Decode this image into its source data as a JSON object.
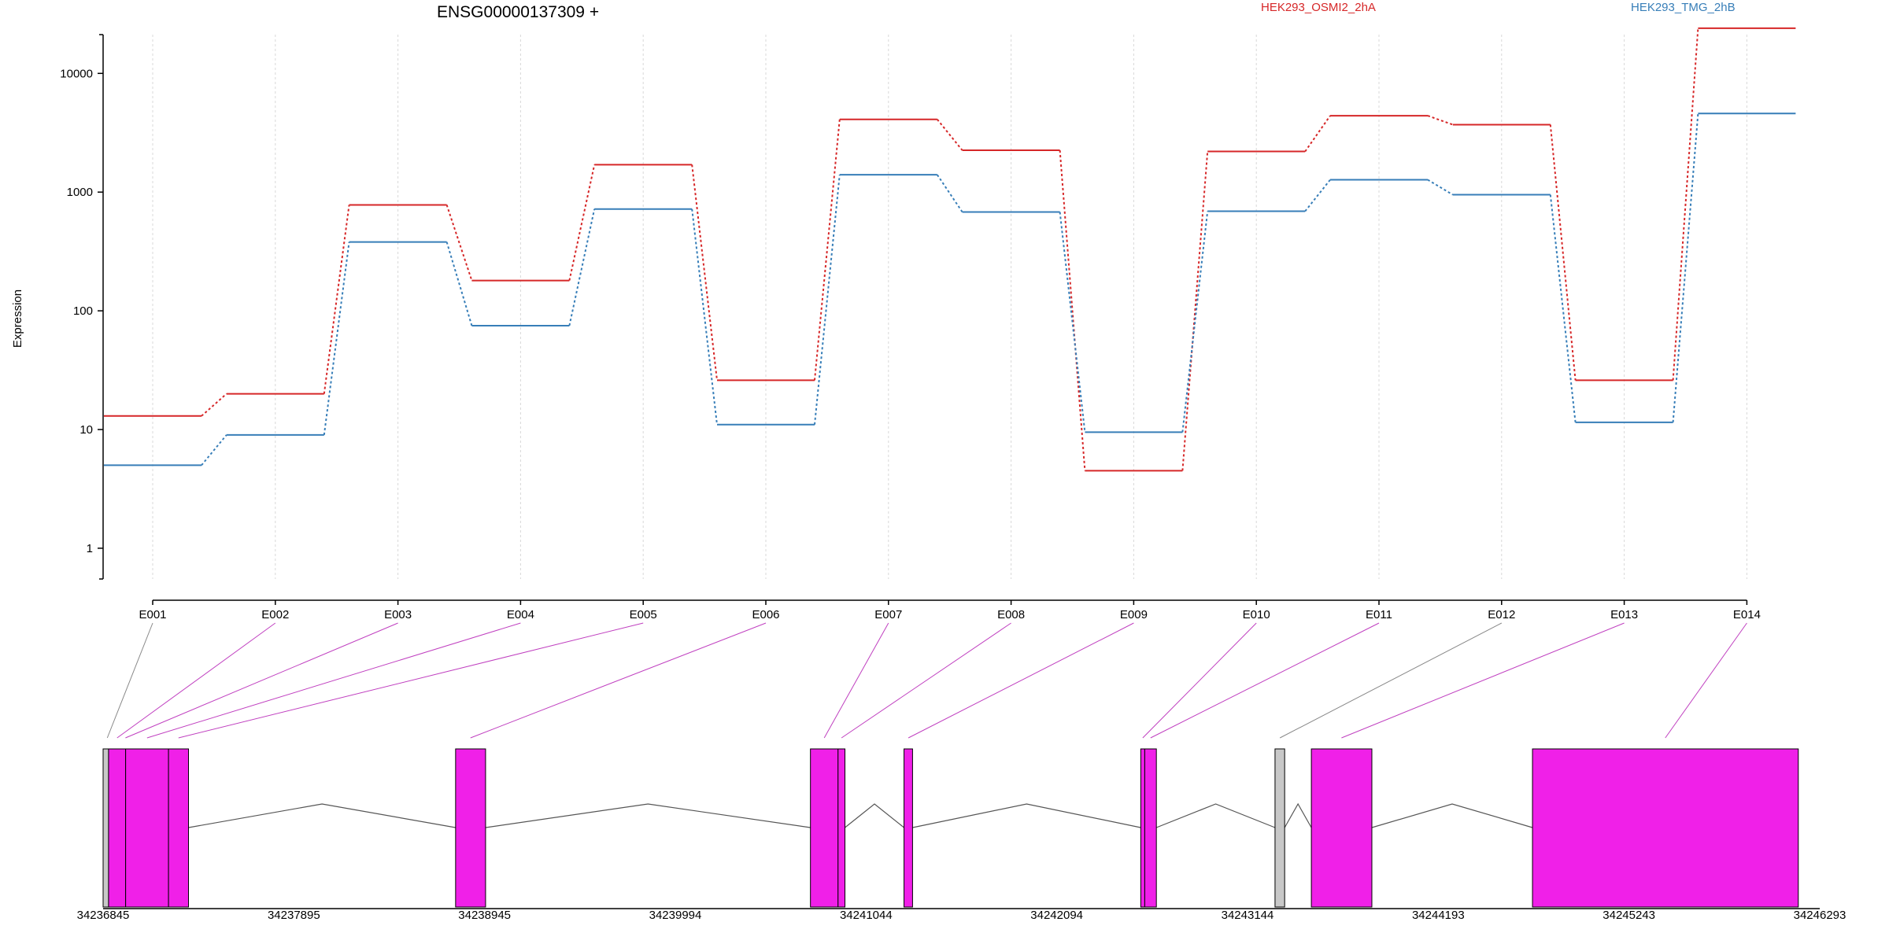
{
  "chart_data": {
    "type": "line",
    "title": "ENSG00000137309 +",
    "ylabel": "Expression",
    "yscale": "log",
    "yticks": [
      1,
      10,
      100,
      1000,
      10000
    ],
    "ytick_labels": [
      "1",
      "10",
      "100",
      "1000",
      "10000"
    ],
    "grid": "vertical dotted at exon centers",
    "legend_position": "top-right",
    "categories": [
      "E001",
      "E002",
      "E003",
      "E004",
      "E005",
      "E006",
      "E007",
      "E008",
      "E009",
      "E010",
      "E011",
      "E012",
      "E013",
      "E014"
    ],
    "series": [
      {
        "name": "HEK293_OSMI2_2hA",
        "color": "#d62728",
        "values": [
          13,
          20,
          780,
          180,
          1700,
          26,
          4100,
          2250,
          4.5,
          2200,
          4400,
          3700,
          26,
          24000
        ]
      },
      {
        "name": "HEK293_TMG_2hB",
        "color": "#377eb8",
        "values": [
          5,
          9,
          380,
          75,
          720,
          11,
          1400,
          680,
          9.5,
          690,
          1270,
          950,
          11.5,
          4600
        ]
      }
    ],
    "genomic_axis": {
      "tick_labels": [
        "34236845",
        "34237895",
        "34238945",
        "34239994",
        "34241044",
        "34242094",
        "34243144",
        "34244193",
        "34245243",
        "34246293"
      ],
      "start": 34236845,
      "end": 34246293
    },
    "gene_model": {
      "exon_fill": "#f020e8",
      "excluded_fill": "#c8c8c8",
      "exons": [
        {
          "start": 34236845,
          "end": 34236875,
          "fill": "excluded"
        },
        {
          "start": 34236875,
          "end": 34236969,
          "fill": "exon"
        },
        {
          "start": 34236969,
          "end": 34237205,
          "fill": "exon"
        },
        {
          "start": 34237205,
          "end": 34237315,
          "fill": "exon"
        },
        {
          "start": 34238785,
          "end": 34238950,
          "fill": "exon"
        },
        {
          "start": 34240738,
          "end": 34240890,
          "fill": "exon"
        },
        {
          "start": 34240890,
          "end": 34240928,
          "fill": "exon"
        },
        {
          "start": 34241253,
          "end": 34241300,
          "fill": "exon"
        },
        {
          "start": 34242556,
          "end": 34242578,
          "fill": "exon"
        },
        {
          "start": 34242578,
          "end": 34242642,
          "fill": "exon"
        },
        {
          "start": 34243295,
          "end": 34243348,
          "fill": "excluded"
        },
        {
          "start": 34243495,
          "end": 34243828,
          "fill": "exon"
        },
        {
          "start": 34244712,
          "end": 34246175,
          "fill": "exon"
        }
      ],
      "introns": [
        {
          "from": 34237315,
          "to": 34238785
        },
        {
          "from": 34238950,
          "to": 34240738
        },
        {
          "from": 34240928,
          "to": 34241253
        },
        {
          "from": 34241300,
          "to": 34242556
        },
        {
          "from": 34242642,
          "to": 34243295
        },
        {
          "from": 34243348,
          "to": 34243495
        },
        {
          "from": 34243828,
          "to": 34244712
        }
      ],
      "exon_links": [
        {
          "exon": "E001",
          "pos": 34236868,
          "color": "#888888"
        },
        {
          "exon": "E002",
          "pos": 34236922,
          "color": "#c040c0"
        },
        {
          "exon": "E003",
          "pos": 34236968,
          "color": "#c040c0"
        },
        {
          "exon": "E004",
          "pos": 34237087,
          "color": "#c040c0"
        },
        {
          "exon": "E005",
          "pos": 34237260,
          "color": "#c040c0"
        },
        {
          "exon": "E006",
          "pos": 34238867,
          "color": "#c040c0"
        },
        {
          "exon": "E007",
          "pos": 34240814,
          "color": "#c040c0"
        },
        {
          "exon": "E008",
          "pos": 34240909,
          "color": "#c040c0"
        },
        {
          "exon": "E009",
          "pos": 34241277,
          "color": "#c040c0"
        },
        {
          "exon": "E010",
          "pos": 34242567,
          "color": "#c040c0"
        },
        {
          "exon": "E011",
          "pos": 34242610,
          "color": "#c040c0"
        },
        {
          "exon": "E012",
          "pos": 34243322,
          "color": "#888888"
        },
        {
          "exon": "E013",
          "pos": 34243661,
          "color": "#c040c0"
        },
        {
          "exon": "E014",
          "pos": 34245443,
          "color": "#c040c0"
        }
      ]
    }
  }
}
